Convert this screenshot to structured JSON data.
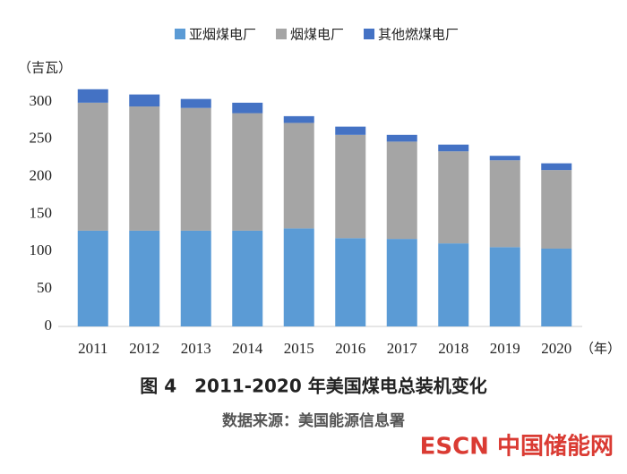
{
  "chart_data": {
    "type": "stacked_bar",
    "y_unit": "（吉瓦）",
    "x_unit": "（年）",
    "caption": "图 4　2011-2020 年美国煤电总装机变化",
    "source": "数据来源：美国能源信息署",
    "watermark": "ESCN 中国储能网",
    "categories": [
      "2011",
      "2012",
      "2013",
      "2014",
      "2015",
      "2016",
      "2017",
      "2018",
      "2019",
      "2020"
    ],
    "series": [
      {
        "name": "亚烟煤电厂",
        "color": "#5b9bd5",
        "values": [
          128,
          128,
          128,
          128,
          131,
          118,
          117,
          111,
          106,
          104
        ]
      },
      {
        "name": "烟煤电厂",
        "color": "#a5a5a5",
        "values": [
          171,
          166,
          164,
          157,
          141,
          138,
          130,
          123,
          116,
          105
        ]
      },
      {
        "name": "其他燃煤电厂",
        "color": "#4472c4",
        "values": [
          18,
          16,
          12,
          14,
          9,
          11,
          9,
          9,
          6,
          9
        ]
      }
    ],
    "ylim": [
      0,
      300
    ],
    "yticks": [
      0,
      50,
      100,
      150,
      200,
      250,
      300
    ],
    "grid": false
  }
}
